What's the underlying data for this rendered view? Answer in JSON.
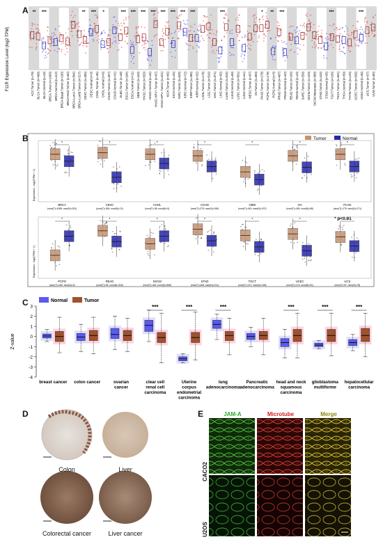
{
  "panels": {
    "a": "A",
    "b": "B",
    "c": "C",
    "d": "D",
    "e": "E"
  },
  "panel_a": {
    "ylabel": "F11R Expression Level (log2 TPM)",
    "sig": [
      "**",
      "***",
      "",
      "",
      "",
      "**",
      "***",
      "*",
      "",
      "***",
      "***",
      "***",
      "***",
      "***",
      "***",
      "***",
      "***",
      "",
      "",
      "***",
      "",
      "",
      "",
      "*",
      "**",
      "***",
      "",
      "",
      "",
      "",
      "***",
      "",
      "",
      "***",
      ""
    ],
    "labels": [
      "ACC.Tumor (n=79)",
      "BLCA.Tumor (n=408)",
      "BLCA.Normal (n=19)",
      "BRCA.Tumor (n=1093)",
      "BRCA.Normal (n=112)",
      "BRCA-Basal.Tumor (n=190)",
      "BRCA-Her2.Tumor (n=82)",
      "BRCA-LumA.Tumor (n=564)",
      "BRCA-LumB.Tumor (n=217)",
      "CESC.Tumor (n=305)",
      "CESC.Normal (n=3)",
      "CHOL.Tumor (n=36)",
      "CHOL.Normal (n=9)",
      "COAD.Tumor (n=457)",
      "COAD.Normal (n=41)",
      "DLBC.Tumor (n=48)",
      "ESCA.Tumor (n=184)",
      "ESCA.Normal (n=11)",
      "GBM.Tumor (n=153)",
      "HNSC.Tumor (n=520)",
      "HNSC.Normal (n=44)",
      "HNSC-HPV+.Tumor (n=97)",
      "HNSC-HPV-.Tumor (n=421)",
      "KICH.Tumor (n=66)",
      "KICH.Normal (n=25)",
      "KIRC.Tumor (n=533)",
      "KIRC.Normal (n=72)",
      "KIRP.Tumor (n=290)",
      "KIRP.Normal (n=32)",
      "LAML.Tumor (n=173)",
      "LGG.Tumor (n=516)",
      "LIHC.Tumor (n=371)",
      "LIHC.Normal (n=50)",
      "LUAD.Tumor (n=515)",
      "LUAD.Normal (n=59)",
      "LUSC.Tumor (n=501)",
      "LUSC.Normal (n=51)",
      "MESO.Tumor (n=87)",
      "OV.Tumor (n=303)",
      "PAAD.Tumor (n=178)",
      "PCPG.Tumor (n=179)",
      "PCPG.Normal (n=3)",
      "PRAD.Tumor (n=497)",
      "PRAD.Normal (n=52)",
      "READ.Tumor (n=166)",
      "READ.Normal (n=10)",
      "SARC.Tumor (n=259)",
      "SKCM.Tumor (n=103)",
      "SKCM.Metastasis (n=368)",
      "STAD.Tumor (n=415)",
      "STAD.Normal (n=35)",
      "TGCT.Tumor (n=150)",
      "THCA.Tumor (n=501)",
      "THCA.Normal (n=59)",
      "THYM.Tumor (n=120)",
      "UCEC.Tumor (n=545)",
      "UCEC.Normal (n=35)",
      "UCS.Tumor (n=57)",
      "UVM.Tumor (n=80)"
    ]
  },
  "panel_b": {
    "legend_tumor": "Tumor",
    "legend_normal": "Normal",
    "pval_note": "p<0.01",
    "ylabel": "Expression - log2(TPM + 1)",
    "row1": [
      {
        "name": "BRCA",
        "n": "(num(T)=1085; num(N)=291)",
        "t": 6.2,
        "n_med": 5.3
      },
      {
        "name": "CESC",
        "n": "(num(T)=306; num(N)=13)",
        "t": 6.4,
        "n_med": 3.2
      },
      {
        "name": "CHOL",
        "n": "(num(T)=36; num(N)=9)",
        "t": 6.2,
        "n_med": 5.0
      },
      {
        "name": "COAD",
        "n": "(num(T)=275; num(N)=349)",
        "t": 6.0,
        "n_med": 4.6
      },
      {
        "name": "GBM",
        "n": "(num(T)=163; num(N)=207)",
        "t": 3.9,
        "n_med": 2.9
      },
      {
        "name": "OV",
        "n": "(num(T)=426; num(N)=88)",
        "t": 6.0,
        "n_med": 4.5
      },
      {
        "name": "PAAD",
        "n": "(num(T)=179; num(N)=171)",
        "t": 6.2,
        "n_med": 4.6
      }
    ],
    "row2": [
      {
        "name": "PCPG",
        "n": "(num(T)=182; num(N)=3)",
        "t": 3.0,
        "n_med": 5.5
      },
      {
        "name": "READ",
        "n": "(num(T)=92; num(N)=318)",
        "t": 6.2,
        "n_med": 4.8
      },
      {
        "name": "SKCM",
        "n": "(num(T)=461; num(N)=558)",
        "t": 4.5,
        "n_med": 5.5
      },
      {
        "name": "STAD",
        "n": "(num(T)=408; num(N)=211)",
        "t": 6.4,
        "n_med": 4.9
      },
      {
        "name": "TGCT",
        "n": "(num(T)=137; num(N)=165)",
        "t": 5.6,
        "n_med": 4.1
      },
      {
        "name": "UCEC",
        "n": "(num(T)=174; num(N)=91)",
        "t": 5.8,
        "n_med": 3.6
      },
      {
        "name": "UCS",
        "n": "(num(T)=57; num(N)=78)",
        "t": 5.4,
        "n_med": 4.2
      }
    ]
  },
  "chart_data": {
    "type": "box",
    "ylabel": "Z-value",
    "ylim": [
      -4,
      3
    ],
    "yticks": [
      -4,
      -3,
      -2,
      -1,
      0,
      1,
      2,
      3
    ],
    "legend": [
      "Normal",
      "Tumor"
    ],
    "colors": {
      "normal": "#5b5bf0",
      "tumor": "#a0522d",
      "normal_jitter": "#c8c8ff",
      "tumor_jitter": "#ffb6c8"
    },
    "categories": [
      "breast cancer",
      "colon cancer",
      "ovarian cancer",
      "clear cell renal cell carcinoma",
      "Uterine corpus endometrial carcinoma",
      "lung adenocarcinoma",
      "Pancreatic adenocarcinoma",
      "head and neck squamous carcinoma",
      "glioblastoma multiforme",
      "hepatocellular carcinoma"
    ],
    "significance": [
      "",
      "",
      "",
      "***",
      "***",
      "***",
      "",
      "***",
      "***",
      "***"
    ],
    "series": [
      {
        "name": "Normal",
        "boxes": [
          {
            "min": -0.5,
            "q1": -0.15,
            "med": 0.05,
            "q3": 0.25,
            "max": 0.7
          },
          {
            "min": -1.5,
            "q1": -0.4,
            "med": -0.05,
            "q3": 0.3,
            "max": 1.2
          },
          {
            "min": -1.3,
            "q1": -0.2,
            "med": 0.2,
            "q3": 0.8,
            "max": 2.0
          },
          {
            "min": -0.5,
            "q1": 0.5,
            "med": 1.1,
            "q3": 1.6,
            "max": 2.6
          },
          {
            "min": -2.6,
            "q1": -2.4,
            "med": -2.2,
            "q3": -2.0,
            "max": -1.7
          },
          {
            "min": -0.3,
            "q1": 0.8,
            "med": 1.2,
            "q3": 1.6,
            "max": 2.2
          },
          {
            "min": -1.0,
            "q1": -0.3,
            "med": 0.0,
            "q3": 0.3,
            "max": 0.9
          },
          {
            "min": -2.1,
            "q1": -1.0,
            "med": -0.6,
            "q3": -0.2,
            "max": 0.7
          },
          {
            "min": -1.2,
            "q1": -1.0,
            "med": -0.85,
            "q3": -0.65,
            "max": -0.4
          },
          {
            "min": -1.4,
            "q1": -0.9,
            "med": -0.6,
            "q3": -0.3,
            "max": 0.2
          }
        ]
      },
      {
        "name": "Tumor",
        "boxes": [
          {
            "min": -1.6,
            "q1": -0.5,
            "med": 0.0,
            "q3": 0.5,
            "max": 1.9
          },
          {
            "min": -1.7,
            "q1": -0.4,
            "med": 0.1,
            "q3": 0.6,
            "max": 1.9
          },
          {
            "min": -1.5,
            "q1": -0.4,
            "med": 0.1,
            "q3": 0.6,
            "max": 1.8
          },
          {
            "min": -2.6,
            "q1": -0.6,
            "med": -0.1,
            "q3": 0.4,
            "max": 2.3
          },
          {
            "min": -2.3,
            "q1": -0.6,
            "med": -0.1,
            "q3": 0.4,
            "max": 2.4
          },
          {
            "min": -1.8,
            "q1": -0.4,
            "med": 0.1,
            "q3": 0.5,
            "max": 1.8
          },
          {
            "min": -1.8,
            "q1": -0.3,
            "med": 0.1,
            "q3": 0.5,
            "max": 1.8
          },
          {
            "min": -2.1,
            "q1": -0.5,
            "med": 0.1,
            "q3": 0.7,
            "max": 2.3
          },
          {
            "min": -1.9,
            "q1": -0.5,
            "med": 0.1,
            "q3": 0.7,
            "max": 2.3
          },
          {
            "min": -2.0,
            "q1": -0.5,
            "med": 0.1,
            "q3": 0.8,
            "max": 2.3
          }
        ]
      }
    ]
  },
  "panel_d": {
    "labels": [
      "Colon",
      "Liver",
      "Colorectal cancer",
      "Liver cancer"
    ]
  },
  "panel_e": {
    "columns": [
      "JAM-A",
      "Microtube",
      "Merge"
    ],
    "rows": [
      "CACO2",
      "U2OS"
    ]
  }
}
